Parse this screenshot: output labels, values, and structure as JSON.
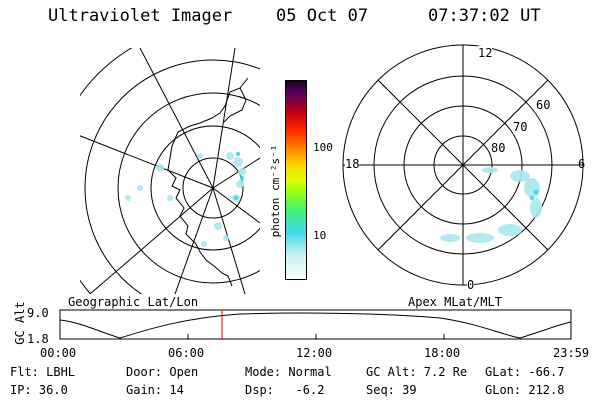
{
  "header": {
    "title": "Ultraviolet Imager",
    "date": "05 Oct 07",
    "time": "07:37:02 UT"
  },
  "colorbar": {
    "unit_label": "photon cm⁻²s⁻¹",
    "ticks": [
      "100",
      "10"
    ],
    "scale": "log",
    "colors": [
      "#ffffff",
      "#c8f0f5",
      "#40d8e8",
      "#40f080",
      "#80ff20",
      "#e0ff00",
      "#ffd000",
      "#ff8000",
      "#ff2000",
      "#c00010",
      "#800040",
      "#500060",
      "#200020"
    ]
  },
  "maps": {
    "left_caption": "Geographic Lat/Lon",
    "right_caption": "Apex MLat/MLT",
    "mlt_labels": {
      "top": "12",
      "left": "18",
      "right": "6",
      "bottom": "0"
    },
    "mlat_labels": [
      "60",
      "70",
      "80"
    ]
  },
  "timeline": {
    "y_label": "GC Alt",
    "y_ticks": [
      "9.0",
      "1.8"
    ],
    "x_ticks": [
      "00:00",
      "06:00",
      "12:00",
      "18:00",
      "23:59"
    ],
    "marker_time": "07:37",
    "marker_color": "#e00000"
  },
  "footer": {
    "filt": "Flt: LBHL",
    "door": "Door: Open",
    "mode": "Mode: Normal",
    "gc_alt": "GC Alt: 7.2 Re",
    "glat": "GLat: -66.7",
    "ip": "IP: 36.0",
    "gain": "Gain: 14",
    "dsp": "Dsp:   -6.2",
    "seq": "Seq: 39",
    "glon": "GLon: 212.8"
  }
}
